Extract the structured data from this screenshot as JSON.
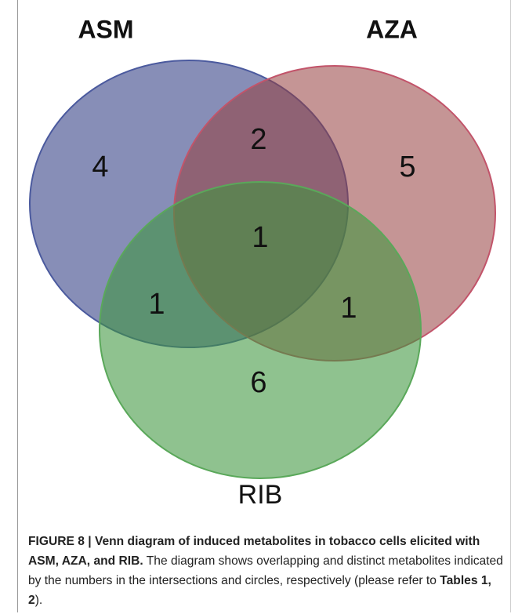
{
  "chart_data": {
    "type": "venn",
    "sets": [
      {
        "name": "ASM",
        "color": "#4b5a9e",
        "fill": "rgba(62,72,138,0.62)"
      },
      {
        "name": "AZA",
        "color": "#c2546a",
        "fill": "rgba(150,62,62,0.55)"
      },
      {
        "name": "RIB",
        "color": "#5aa85a",
        "fill": "rgba(62,150,62,0.58)"
      }
    ],
    "regions": [
      {
        "sets": [
          "ASM"
        ],
        "value": 4
      },
      {
        "sets": [
          "ASM",
          "AZA"
        ],
        "value": 2
      },
      {
        "sets": [
          "AZA"
        ],
        "value": 5
      },
      {
        "sets": [
          "ASM",
          "AZA",
          "RIB"
        ],
        "value": 1
      },
      {
        "sets": [
          "ASM",
          "RIB"
        ],
        "value": 1
      },
      {
        "sets": [
          "AZA",
          "RIB"
        ],
        "value": 1
      },
      {
        "sets": [
          "RIB"
        ],
        "value": 6
      }
    ]
  },
  "caption": {
    "label": "FIGURE 8 | Venn diagram of induced metabolites in tobacco cells elicited with ASM, AZA, and RIB.",
    "text": "The diagram shows overlapping and distinct metabolites indicated by the numbers in the intersections and circles, respectively (please refer to",
    "ref": "Tables 1, 2",
    "end": ")."
  }
}
